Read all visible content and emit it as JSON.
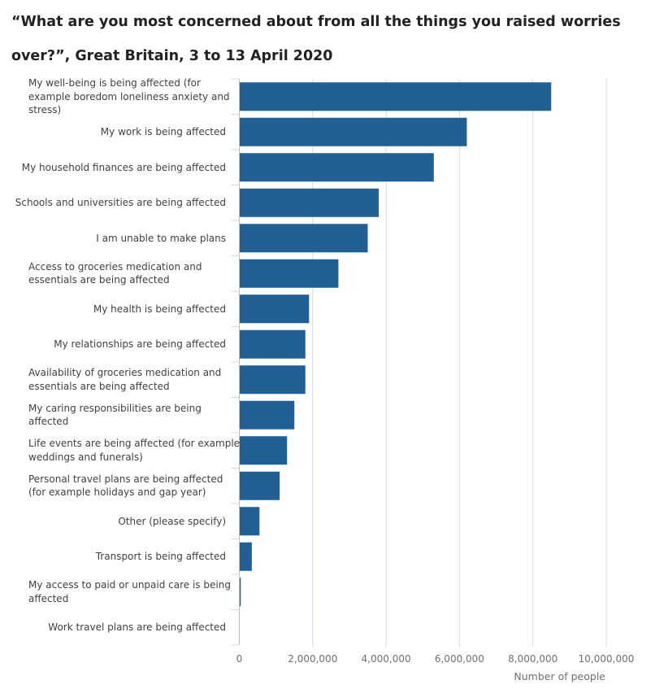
{
  "chart_data": {
    "type": "bar",
    "orientation": "horizontal",
    "title": "“What are you most concerned about from all the things you raised worries over?”, Great Britain, 3 to 13 April 2020",
    "xlabel": "Number of people",
    "ylabel": "",
    "xlim": [
      0,
      10000000
    ],
    "xticks": [
      0,
      2000000,
      4000000,
      6000000,
      8000000,
      10000000
    ],
    "xtick_labels": [
      "0",
      "2,000,000",
      "4,000,000",
      "6,000,000",
      "8,000,000",
      "10,000,000"
    ],
    "grid": "vertical",
    "legend": "none",
    "colors": {
      "bar": "#206095",
      "grid": "#d9d9e6",
      "axis": "#bebebe",
      "text": "#414042"
    },
    "categories": [
      "My well-being is being affected (for example boredom loneliness anxiety and stress)",
      "My work is being affected",
      "My household finances are being affected",
      "Schools and universities are being affected",
      "I am unable to make plans",
      "Access to groceries medication and essentials are being affected",
      "My health is being affected",
      "My relationships are being affected",
      "Availability of groceries medication and essentials are being affected",
      "My caring responsibilities are being affected",
      "Life events are being affected (for example weddings and funerals)",
      "Personal travel plans are being affected (for example holidays and gap year)",
      "Other (please specify)",
      "Transport is being affected",
      "My access to paid or unpaid care is being affected",
      "Work travel plans are being affected"
    ],
    "category_lines": [
      [
        "My well-being is being affected (for",
        "example boredom loneliness anxiety and",
        "stress)"
      ],
      [
        "My work is being affected"
      ],
      [
        "My household finances are being affected"
      ],
      [
        "Schools and universities are being affected"
      ],
      [
        "I am unable to make plans"
      ],
      [
        "Access to groceries medication and",
        "essentials are being affected"
      ],
      [
        "My health is being affected"
      ],
      [
        "My relationships are being affected"
      ],
      [
        "Availability of groceries medication and",
        "essentials are being affected"
      ],
      [
        "My caring responsibilities are being",
        "affected"
      ],
      [
        "Life events are being affected (for example",
        "weddings and funerals)"
      ],
      [
        "Personal travel plans are being affected",
        "(for example holidays and gap year)"
      ],
      [
        "Other (please specify)"
      ],
      [
        "Transport is being affected"
      ],
      [
        "My access to paid or unpaid care is being",
        "affected"
      ],
      [
        "Work travel plans are being affected"
      ]
    ],
    "values": [
      8500000,
      6200000,
      5300000,
      3800000,
      3500000,
      2700000,
      1900000,
      1800000,
      1800000,
      1500000,
      1300000,
      1100000,
      550000,
      340000,
      40000,
      0
    ]
  }
}
